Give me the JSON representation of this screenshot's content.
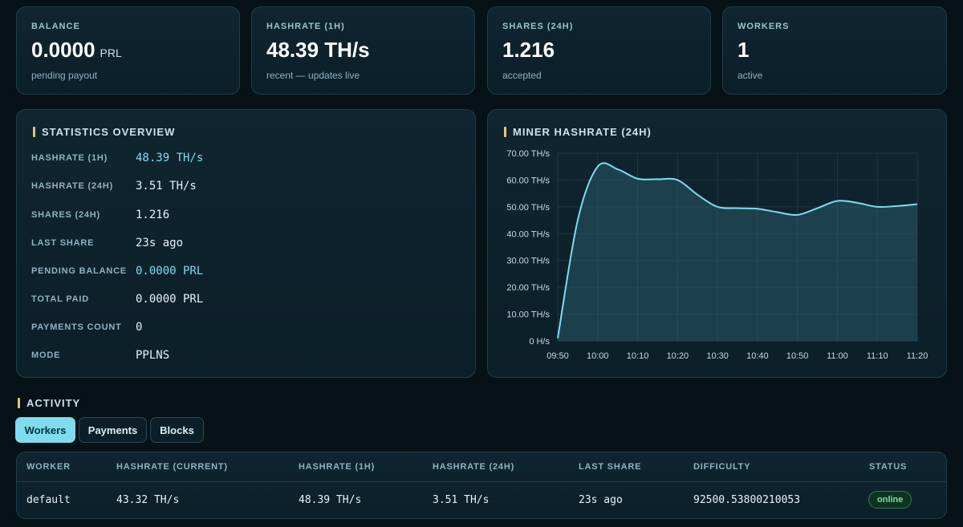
{
  "stats": [
    {
      "label": "BALANCE",
      "value": "0.0000",
      "unit": "PRL",
      "sub": "pending payout"
    },
    {
      "label": "HASHRATE (1H)",
      "value": "48.39 TH/s",
      "unit": "",
      "sub": "recent — updates live"
    },
    {
      "label": "SHARES (24H)",
      "value": "1.216",
      "unit": "",
      "sub": "accepted"
    },
    {
      "label": "WORKERS",
      "value": "1",
      "unit": "",
      "sub": "active"
    }
  ],
  "overview": {
    "title": "STATISTICS OVERVIEW",
    "rows": [
      {
        "label": "HASHRATE (1H)",
        "value": "48.39 TH/s"
      },
      {
        "label": "HASHRATE (24H)",
        "value": "3.51 TH/s"
      },
      {
        "label": "SHARES (24H)",
        "value": "1.216"
      },
      {
        "label": "LAST SHARE",
        "value": "23s ago"
      },
      {
        "label": "PENDING BALANCE",
        "value": "0.0000 PRL"
      },
      {
        "label": "TOTAL PAID",
        "value": "0.0000 PRL"
      },
      {
        "label": "PAYMENTS COUNT",
        "value": "0"
      },
      {
        "label": "MODE",
        "value": "PPLNS"
      }
    ]
  },
  "chart_title": "MINER HASHRATE (24H)",
  "chart_data": {
    "type": "area",
    "title": "MINER HASHRATE (24H)",
    "x": [
      "09:50",
      "09:55",
      "10:00",
      "10:05",
      "10:10",
      "10:15",
      "10:20",
      "10:25",
      "10:30",
      "10:35",
      "10:40",
      "10:45",
      "10:50",
      "10:55",
      "11:00",
      "11:05",
      "11:10",
      "11:15",
      "11:20"
    ],
    "series": [
      {
        "values": [
          1.0,
          45.0,
          65.0,
          64.0,
          60.5,
          60.3,
          60.0,
          54.5,
          50.0,
          49.5,
          49.3,
          48.0,
          47.0,
          49.5,
          52.2,
          51.5,
          50.0,
          50.3,
          51.0
        ]
      }
    ],
    "xticks": [
      "09:50",
      "10:00",
      "10:10",
      "10:20",
      "10:30",
      "10:40",
      "10:50",
      "11:00",
      "11:10",
      "11:20"
    ],
    "yticks": [
      "0 H/s",
      "10.00 TH/s",
      "20.00 TH/s",
      "30.00 TH/s",
      "40.00 TH/s",
      "50.00 TH/s",
      "60.00 TH/s",
      "70.00 TH/s"
    ],
    "ylim": [
      0,
      70
    ],
    "grid": true,
    "line_color": "#7fdcef",
    "fill_color": "#2a5a68"
  },
  "activity": {
    "title": "ACTIVITY",
    "tabs": [
      "Workers",
      "Payments",
      "Blocks"
    ],
    "columns": [
      "WORKER",
      "HASHRATE (CURRENT)",
      "HASHRATE (1H)",
      "HASHRATE (24H)",
      "LAST SHARE",
      "DIFFICULTY",
      "STATUS"
    ],
    "rows": [
      [
        "default",
        "43.32 TH/s",
        "48.39 TH/s",
        "3.51 TH/s",
        "23s ago",
        "92500.53800210053",
        "online"
      ]
    ]
  },
  "colors": {
    "accent": "#7fdcef",
    "section_bar": "#e8c46a",
    "online": "#6fe39a"
  }
}
